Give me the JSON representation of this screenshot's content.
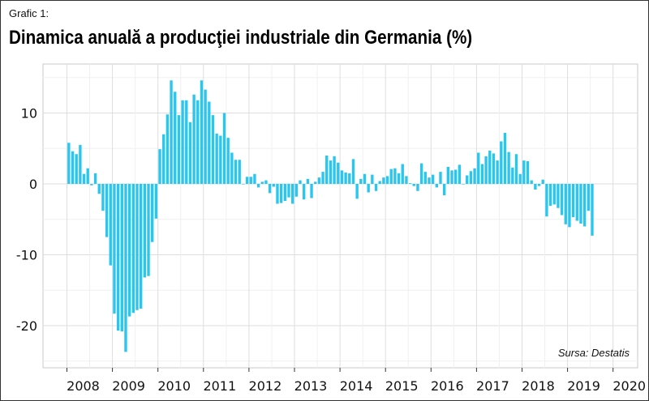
{
  "caption": "Grafic 1:",
  "title": "Dinamica anuală a producţiei industriale din Germania (%)",
  "source": "Sursa: Destatis",
  "colors": {
    "bar": "#29c7f0",
    "grid_major": "#dedede",
    "grid_minor": "#f0f0f0",
    "panel_border": "#c8c8c8"
  },
  "chart_data": {
    "type": "bar",
    "title": "Dinamica anuală a producţiei industriale din Germania (%)",
    "xlabel": "",
    "ylabel": "",
    "ylim": [
      -26,
      15.5
    ],
    "yticks": [
      10,
      0,
      -10,
      -20
    ],
    "ytick_labels": [
      "10",
      "0",
      "-10",
      "-20"
    ],
    "xticks": [
      "2008",
      "2009",
      "2010",
      "2011",
      "2012",
      "2013",
      "2014",
      "2015",
      "2016",
      "2017",
      "2018",
      "2019",
      "2020"
    ],
    "x_start": "2008-01",
    "grid": true,
    "series": [
      {
        "values": [
          5.8,
          4.6,
          4.2,
          5.5,
          1.4,
          2.2,
          -0.2,
          1.5,
          -1.4,
          -3.8,
          -7.5,
          -11.5,
          -18.3,
          -20.7,
          -20.8,
          -23.7,
          -18.7,
          -18.2,
          -17.8,
          -17.6,
          -13.2,
          -13.0,
          -8.2,
          -4.9,
          4.9,
          7.0,
          9.8,
          14.6,
          13.0,
          9.7,
          11.8,
          11.8,
          8.7,
          12.6,
          11.8,
          14.6,
          13.3,
          11.6,
          9.7,
          7.1,
          6.8,
          10.0,
          6.5,
          4.4,
          3.4,
          3.4,
          0,
          1.0,
          1.0,
          1.4,
          -0.5,
          0.3,
          0.5,
          -1.3,
          -0.4,
          -2.8,
          -2.7,
          -2.4,
          -1.9,
          -2.8,
          -1.8,
          0.5,
          -2.2,
          0.7,
          -2.0,
          0.3,
          0.9,
          1.7,
          4.0,
          3.3,
          3.9,
          3.0,
          1.9,
          1.6,
          1.5,
          3.5,
          -2.1,
          0.7,
          1.4,
          -1.2,
          1.3,
          -1.0,
          0.4,
          0.9,
          1.1,
          2.1,
          2.2,
          1.5,
          2.8,
          1.1,
          0.1,
          -0.3,
          -1.0,
          2.9,
          1.7,
          0.9,
          1.3,
          -0.5,
          1.7,
          -1.6,
          2.4,
          1.9,
          2.0,
          2.7,
          0,
          1.2,
          1.8,
          2.2,
          4.4,
          2.8,
          3.9,
          4.7,
          4.3,
          3.3,
          6.0,
          7.2,
          4.5,
          2.3,
          4.2,
          1.4,
          3.3,
          3.2,
          0.5,
          -0.8,
          -0.3,
          0.6,
          -4.6,
          -3.1,
          -2.9,
          -3.4,
          -4.4,
          -5.7,
          -6.1,
          -4.7,
          -5.2,
          -5.6,
          -6.0,
          -3.8,
          -7.3
        ]
      }
    ]
  }
}
